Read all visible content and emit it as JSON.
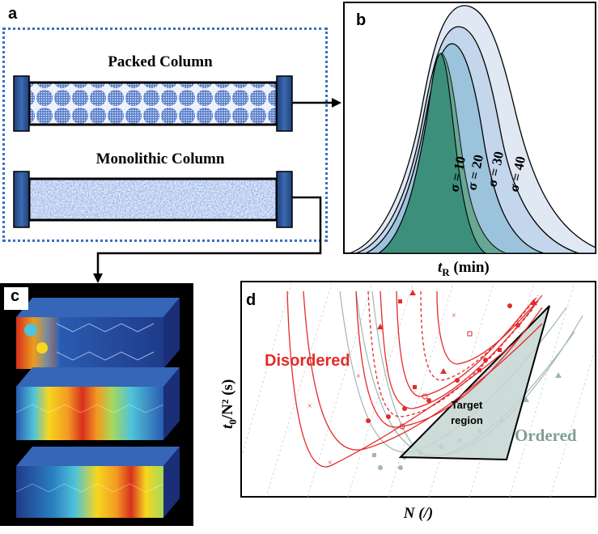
{
  "panels": {
    "a": {
      "label": "a",
      "columns": [
        {
          "title": "Packed Column"
        },
        {
          "title": "Monolithic Column"
        }
      ]
    },
    "b": {
      "label": "b",
      "xlabel_main": "t",
      "xlabel_sub": "R",
      "xlabel_unit": " (min)",
      "curves": [
        {
          "label": "σ = 40",
          "color": "#dfe8f3"
        },
        {
          "label": "σ = 30",
          "color": "#c3d6ec"
        },
        {
          "label": "σ = 20",
          "color": "#9cc3dc"
        },
        {
          "label": "σ = 10",
          "color": "#3b8f7b"
        }
      ]
    },
    "c": {
      "label": "c",
      "colormap": [
        "#1f3b8a",
        "#2a7fc0",
        "#4fc3d9",
        "#a8d85a",
        "#f6d71d",
        "#f39a21",
        "#d7301f"
      ]
    },
    "d": {
      "label": "d",
      "disordered_label": "Disordered",
      "ordered_label": "Ordered",
      "target_line1": "Target",
      "target_line2": "region",
      "ylabel_main": "t",
      "ylabel_sub": "0",
      "ylabel_rest": "/N² (s)",
      "xlabel": "N (/)",
      "disordered_color": "#e32b2b",
      "ordered_color": "#7f9e98"
    }
  }
}
